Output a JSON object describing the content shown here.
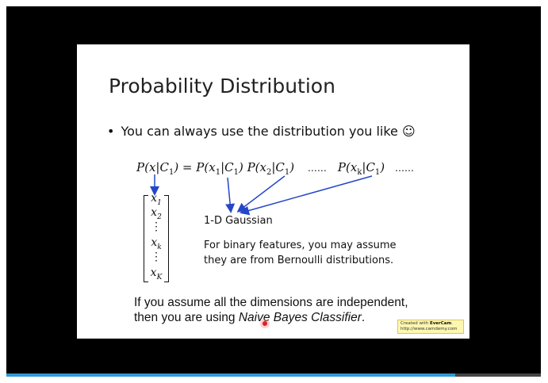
{
  "slide": {
    "title": "Probability Distribution",
    "bullet": "You can always use the distribution you like ☺",
    "formula": {
      "lhs": "P(x|C",
      "sub1": "1",
      "eq": ") = P(x",
      "t1a": "1",
      "t1b": "|C",
      "t1c": "1",
      "t1d": ") P(x",
      "t2a": "2",
      "t2b": "|C",
      "t2c": "1",
      "t2d": ")",
      "dots1": "……",
      "t3": "P(x",
      "t3a": "k",
      "t3b": "|C",
      "t3c": "1",
      "t3d": ")",
      "dots2": "……"
    },
    "vector": [
      {
        "v": "x",
        "s": "1"
      },
      {
        "v": "x",
        "s": "2"
      },
      {
        "v": "⋮",
        "s": ""
      },
      {
        "v": "x",
        "s": "k"
      },
      {
        "v": "⋮",
        "s": ""
      },
      {
        "v": "x",
        "s": "K"
      }
    ],
    "gaussian": "1-D Gaussian",
    "binary_line1": "For binary features, you may assume",
    "binary_line2": "they are from Bernoulli distributions.",
    "assume_line1": "If you assume all the dimensions are independent,",
    "assume_line2a": "then you are using ",
    "assume_line2b": "Naive Bayes Classifier",
    "assume_line2c": "."
  },
  "watermark": {
    "line1a": "Created with ",
    "line1b": "EverCam",
    "line1c": ".",
    "line2": "http://www.camdemy.com"
  },
  "player": {
    "progress": 0.84,
    "progress_color": "#2e9ad6"
  }
}
